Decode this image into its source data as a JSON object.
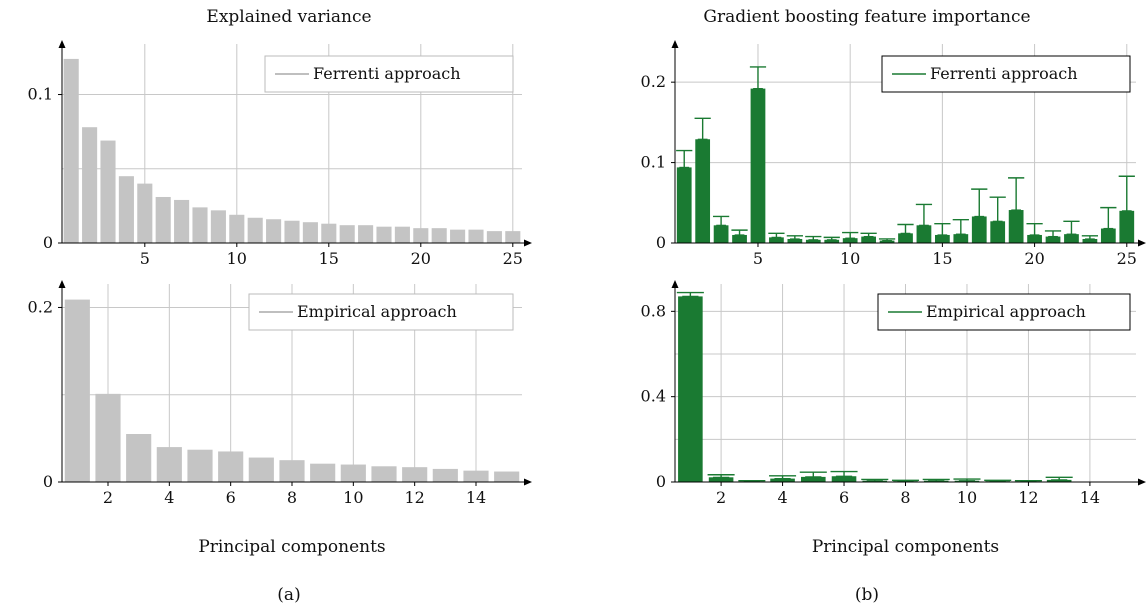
{
  "captions": {
    "a": "(a)",
    "b": "(b)"
  },
  "columns": {
    "left_title": "Explained variance",
    "right_title": "Gradient boosting feature importance"
  },
  "colors": {
    "gray_bar": "#c4c4c4",
    "green_bar": "#1a7a32",
    "grid": "#c8c8c8",
    "axis": "#000000"
  },
  "chart_data": [
    {
      "id": "ev_ferrenti",
      "type": "bar",
      "title": "Explained variance",
      "legend": "Ferrenti approach",
      "legend_position": "top-right",
      "grid": true,
      "xlim": [
        0.5,
        25.5
      ],
      "ylim": [
        0,
        0.13
      ],
      "x_ticks": [
        5,
        10,
        15,
        20,
        25
      ],
      "y_ticks": [
        0,
        0.1
      ],
      "y_tick_labels": [
        "0",
        "0.1"
      ],
      "y_grid": [
        0.05,
        0.1
      ],
      "x_grid": [
        5,
        10,
        15,
        20,
        25
      ],
      "bar_color": "#c4c4c4",
      "categories": [
        1,
        2,
        3,
        4,
        5,
        6,
        7,
        8,
        9,
        10,
        11,
        12,
        13,
        14,
        15,
        16,
        17,
        18,
        19,
        20,
        21,
        22,
        23,
        24,
        25
      ],
      "values": [
        0.124,
        0.078,
        0.069,
        0.045,
        0.04,
        0.031,
        0.029,
        0.024,
        0.022,
        0.019,
        0.017,
        0.016,
        0.015,
        0.014,
        0.013,
        0.012,
        0.012,
        0.011,
        0.011,
        0.01,
        0.01,
        0.009,
        0.009,
        0.008,
        0.008
      ]
    },
    {
      "id": "ev_empirical",
      "type": "bar",
      "legend": "Empirical approach",
      "legend_position": "top-right",
      "xlabel": "Principal components",
      "grid": true,
      "xlim": [
        0.5,
        15.5
      ],
      "ylim": [
        0,
        0.22
      ],
      "x_ticks": [
        2,
        4,
        6,
        8,
        10,
        12,
        14
      ],
      "y_ticks": [
        0,
        0.2
      ],
      "y_tick_labels": [
        "0",
        "0.2"
      ],
      "y_grid": [
        0.1,
        0.2
      ],
      "x_grid": [
        2,
        4,
        6,
        8,
        10,
        12,
        14
      ],
      "bar_color": "#c4c4c4",
      "categories": [
        1,
        2,
        3,
        4,
        5,
        6,
        7,
        8,
        9,
        10,
        11,
        12,
        13,
        14,
        15
      ],
      "values": [
        0.209,
        0.101,
        0.055,
        0.04,
        0.037,
        0.035,
        0.028,
        0.025,
        0.021,
        0.02,
        0.018,
        0.017,
        0.015,
        0.013,
        0.012
      ]
    },
    {
      "id": "gb_ferrenti",
      "type": "bar",
      "title": "Gradient boosting feature importance",
      "legend": "Ferrenti approach",
      "legend_position": "top-right",
      "grid": true,
      "error_bars": true,
      "xlim": [
        0.5,
        25.5
      ],
      "ylim": [
        0,
        0.24
      ],
      "x_ticks": [
        5,
        10,
        15,
        20,
        25
      ],
      "y_ticks": [
        0,
        0.1,
        0.2
      ],
      "y_tick_labels": [
        "0",
        "0.1",
        "0.2"
      ],
      "y_grid": [
        0.1,
        0.2
      ],
      "x_grid": [
        5,
        10,
        15,
        20,
        25
      ],
      "bar_color": "#1a7a32",
      "categories": [
        1,
        2,
        3,
        4,
        5,
        6,
        7,
        8,
        9,
        10,
        11,
        12,
        13,
        14,
        15,
        16,
        17,
        18,
        19,
        20,
        21,
        22,
        23,
        24,
        25
      ],
      "values": [
        0.094,
        0.129,
        0.022,
        0.01,
        0.192,
        0.007,
        0.005,
        0.004,
        0.004,
        0.006,
        0.008,
        0.003,
        0.012,
        0.022,
        0.01,
        0.011,
        0.033,
        0.027,
        0.041,
        0.01,
        0.008,
        0.011,
        0.005,
        0.018,
        0.04
      ],
      "errors": [
        0.021,
        0.026,
        0.011,
        0.006,
        0.027,
        0.005,
        0.004,
        0.004,
        0.003,
        0.007,
        0.004,
        0.002,
        0.011,
        0.026,
        0.014,
        0.018,
        0.034,
        0.03,
        0.04,
        0.014,
        0.007,
        0.016,
        0.004,
        0.026,
        0.043
      ]
    },
    {
      "id": "gb_empirical",
      "type": "bar",
      "legend": "Empirical approach",
      "legend_position": "top-right",
      "xlabel": "Principal components",
      "grid": true,
      "error_bars": true,
      "xlim": [
        0.5,
        15.5
      ],
      "ylim": [
        0,
        0.9
      ],
      "x_ticks": [
        2,
        4,
        6,
        8,
        10,
        12,
        14
      ],
      "y_ticks": [
        0,
        0.4,
        0.8
      ],
      "y_tick_labels": [
        "0",
        "0.4",
        "0.8"
      ],
      "y_grid": [
        0.2,
        0.4,
        0.6,
        0.8
      ],
      "x_grid": [
        2,
        4,
        6,
        8,
        10,
        12,
        14
      ],
      "bar_color": "#1a7a32",
      "categories": [
        1,
        2,
        3,
        4,
        5,
        6,
        7,
        8,
        9,
        10,
        11,
        12,
        13,
        14,
        15
      ],
      "values": [
        0.87,
        0.022,
        0.003,
        0.016,
        0.024,
        0.027,
        0.006,
        0.004,
        0.006,
        0.006,
        0.004,
        0.003,
        0.01,
        0.0,
        0.0
      ],
      "errors": [
        0.018,
        0.012,
        0.003,
        0.013,
        0.022,
        0.022,
        0.006,
        0.004,
        0.006,
        0.008,
        0.004,
        0.003,
        0.012,
        0.0,
        0.0
      ]
    }
  ]
}
